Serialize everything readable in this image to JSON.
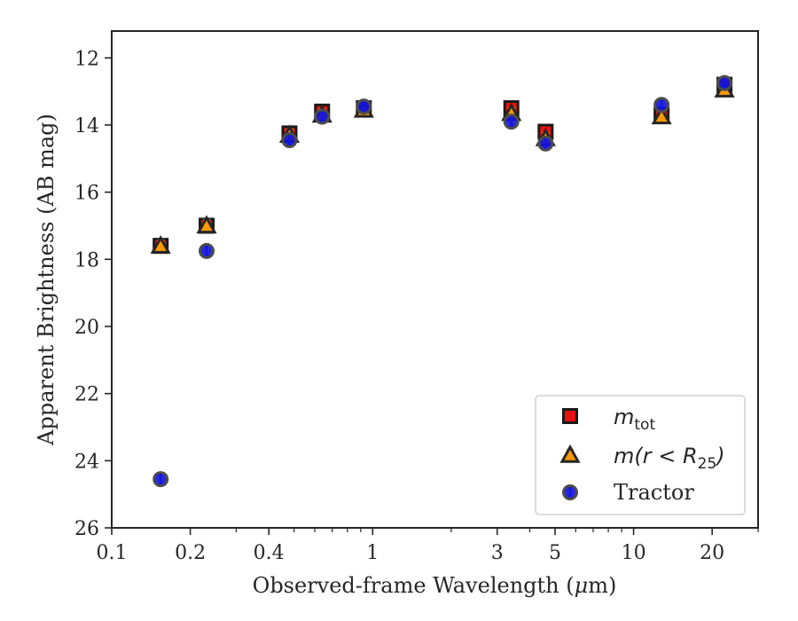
{
  "chart_data": {
    "type": "scatter",
    "x_scale": "log",
    "y_inverted": true,
    "xlim": [
      0.1,
      30
    ],
    "ylim": [
      26,
      11.2
    ],
    "xlabel_pre": "Observed-frame Wavelength (",
    "xlabel_unit_mu": "μ",
    "xlabel_post": "m)",
    "ylabel": "Apparent Brightness (AB mag)",
    "x_ticks": [
      0.1,
      0.2,
      0.4,
      1,
      3,
      5,
      10,
      20
    ],
    "x_tick_labels": [
      "0.1",
      "0.2",
      "0.4",
      "1",
      "3",
      "5",
      "10",
      "20"
    ],
    "x_minor_ticks": [
      0.3,
      0.5,
      0.6,
      0.7,
      0.8,
      0.9,
      2,
      4,
      6,
      7,
      8,
      9,
      30
    ],
    "y_ticks": [
      12,
      14,
      16,
      18,
      20,
      22,
      24,
      26
    ],
    "y_tick_labels": [
      "12",
      "14",
      "16",
      "18",
      "20",
      "22",
      "24",
      "26"
    ],
    "grid": false,
    "legend_position": "lower-right",
    "series": [
      {
        "name": "m_tot",
        "marker": "square",
        "color": "#e81010",
        "edge": "#1a1a1a",
        "error_color": "#e81010",
        "points": [
          {
            "x": 0.154,
            "y": 17.6
          },
          {
            "x": 0.231,
            "y": 17.0
          },
          {
            "x": 0.48,
            "y": 14.25
          },
          {
            "x": 0.64,
            "y": 13.6
          },
          {
            "x": 0.925,
            "y": 13.5
          },
          {
            "x": 3.4,
            "y": 13.5
          },
          {
            "x": 4.6,
            "y": 14.2
          },
          {
            "x": 12.8,
            "y": 13.7
          },
          {
            "x": 22.3,
            "y": 12.8
          }
        ]
      },
      {
        "name": "m(r < R25)",
        "marker": "triangle",
        "color": "#ff9900",
        "edge": "#262626",
        "error_color": "#ffa500",
        "points": [
          {
            "x": 0.154,
            "y": 17.6
          },
          {
            "x": 0.231,
            "y": 17.0
          },
          {
            "x": 0.48,
            "y": 14.3
          },
          {
            "x": 0.64,
            "y": 13.7
          },
          {
            "x": 0.925,
            "y": 13.55
          },
          {
            "x": 3.4,
            "y": 13.65
          },
          {
            "x": 4.6,
            "y": 14.4
          },
          {
            "x": 12.8,
            "y": 13.75
          },
          {
            "x": 22.3,
            "y": 12.95
          }
        ]
      },
      {
        "name": "Tractor",
        "marker": "circle",
        "color": "#1111dd",
        "edge": "#4d4d4d",
        "error_color": "#3f3fff",
        "points": [
          {
            "x": 0.154,
            "y": 24.55
          },
          {
            "x": 0.231,
            "y": 17.75
          },
          {
            "x": 0.48,
            "y": 14.45
          },
          {
            "x": 0.64,
            "y": 13.75
          },
          {
            "x": 0.925,
            "y": 13.45
          },
          {
            "x": 3.4,
            "y": 13.9
          },
          {
            "x": 4.6,
            "y": 14.55
          },
          {
            "x": 12.8,
            "y": 13.4
          },
          {
            "x": 22.3,
            "y": 12.75
          }
        ]
      }
    ],
    "legend": {
      "m_tot_base": "m",
      "m_tot_sub": "tot",
      "m_r25_a": "m(r < R",
      "m_r25_sub": "25",
      "m_r25_b": ")",
      "tractor": "Tractor"
    }
  }
}
